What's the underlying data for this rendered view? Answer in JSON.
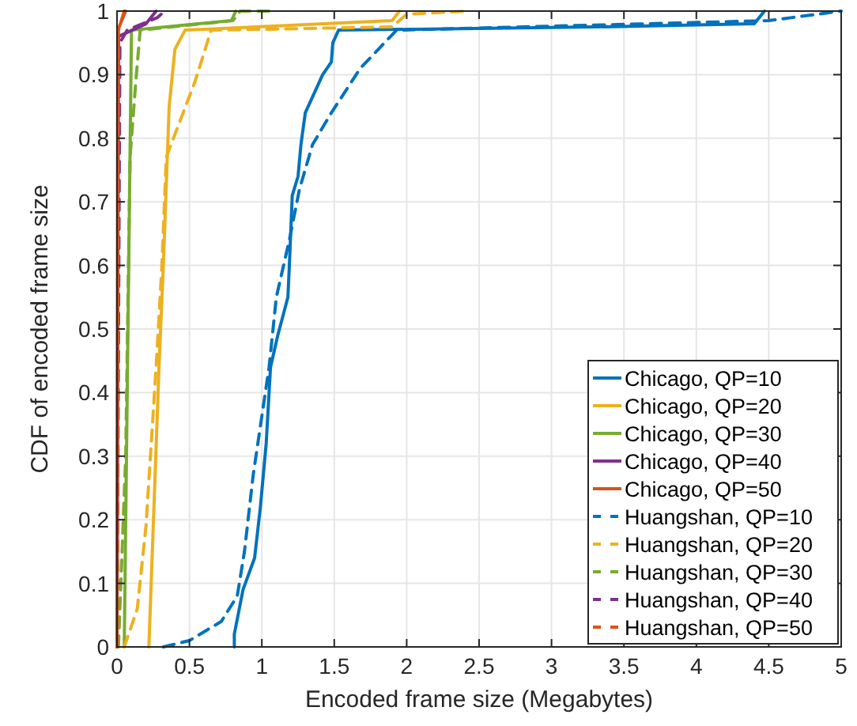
{
  "chart_data": {
    "type": "line",
    "xlabel": "Encoded frame size (Megabytes)",
    "ylabel": "CDF of encoded frame size",
    "xlim": [
      0,
      5
    ],
    "ylim": [
      0,
      1
    ],
    "xticks": [
      0,
      0.5,
      1,
      1.5,
      2,
      2.5,
      3,
      3.5,
      4,
      4.5,
      5
    ],
    "yticks": [
      0,
      0.1,
      0.2,
      0.3,
      0.4,
      0.5,
      0.6,
      0.7,
      0.8,
      0.9,
      1
    ],
    "grid": true,
    "legend": "bottom right",
    "series": [
      {
        "name": "Chicago, QP=10",
        "color": "#0072bd",
        "line_style": "solid",
        "x": [
          0.81,
          0.81,
          0.87,
          0.95,
          0.99,
          1.03,
          1.06,
          1.11,
          1.18,
          1.19,
          1.21,
          1.25,
          1.27,
          1.3,
          1.42,
          1.48,
          1.49,
          1.53,
          3.3,
          4.4,
          4.47
        ],
        "values": [
          0,
          0.02,
          0.09,
          0.14,
          0.22,
          0.32,
          0.44,
          0.49,
          0.55,
          0.6,
          0.71,
          0.74,
          0.79,
          0.84,
          0.9,
          0.92,
          0.95,
          0.97,
          0.975,
          0.98,
          1
        ]
      },
      {
        "name": "Chicago, QP=20",
        "color": "#edb120",
        "line_style": "solid",
        "x": [
          0.22,
          0.29,
          0.32,
          0.36,
          0.4,
          0.47,
          1.9,
          1.95
        ],
        "values": [
          0,
          0.44,
          0.6,
          0.85,
          0.94,
          0.97,
          0.985,
          1
        ]
      },
      {
        "name": "Chicago, QP=30",
        "color": "#77ac30",
        "line_style": "solid",
        "x": [
          0.05,
          0.1,
          0.79,
          0.82
        ],
        "values": [
          0,
          0.97,
          0.985,
          1
        ]
      },
      {
        "name": "Chicago, QP=40",
        "color": "#7e2f8e",
        "line_style": "solid",
        "x": [
          0,
          0.01,
          0.2,
          0.27
        ],
        "values": [
          0,
          0.96,
          0.98,
          1
        ]
      },
      {
        "name": "Chicago, QP=50",
        "color": "#d95319",
        "line_style": "solid",
        "x": [
          0,
          0.005,
          0.06
        ],
        "values": [
          0,
          0.97,
          1
        ]
      },
      {
        "name": "Huangshan, QP=10",
        "color": "#0072bd",
        "line_style": "dashed",
        "x": [
          0.32,
          0.5,
          0.72,
          0.83,
          0.88,
          0.94,
          1.05,
          1.1,
          1.19,
          1.26,
          1.35,
          1.48,
          1.68,
          1.93,
          4.5,
          5
        ],
        "values": [
          0,
          0.01,
          0.04,
          0.08,
          0.15,
          0.27,
          0.44,
          0.55,
          0.64,
          0.72,
          0.79,
          0.84,
          0.91,
          0.97,
          0.985,
          1
        ]
      },
      {
        "name": "Huangshan, QP=20",
        "color": "#edb120",
        "line_style": "dashed",
        "x": [
          0.05,
          0.14,
          0.2,
          0.27,
          0.31,
          0.34,
          0.54,
          0.65,
          1.9,
          2,
          2.4
        ],
        "values": [
          0,
          0.06,
          0.19,
          0.44,
          0.6,
          0.77,
          0.89,
          0.97,
          0.975,
          0.995,
          1
        ]
      },
      {
        "name": "Huangshan, QP=30",
        "color": "#77ac30",
        "line_style": "dashed",
        "x": [
          0.01,
          0.06,
          0.09,
          0.13,
          0.16,
          0.8,
          0.85,
          1.05
        ],
        "values": [
          0,
          0.3,
          0.77,
          0.89,
          0.97,
          0.985,
          1,
          1
        ]
      },
      {
        "name": "Huangshan, QP=40",
        "color": "#7e2f8e",
        "line_style": "dashed",
        "x": [
          0,
          0.02,
          0.07,
          0.28,
          0.33
        ],
        "values": [
          0,
          0.95,
          0.97,
          0.99,
          1
        ]
      },
      {
        "name": "Huangshan, QP=50",
        "color": "#d95319",
        "line_style": "dashed",
        "x": [
          0,
          0.01,
          0.05
        ],
        "values": [
          0,
          0.97,
          1
        ]
      }
    ]
  }
}
